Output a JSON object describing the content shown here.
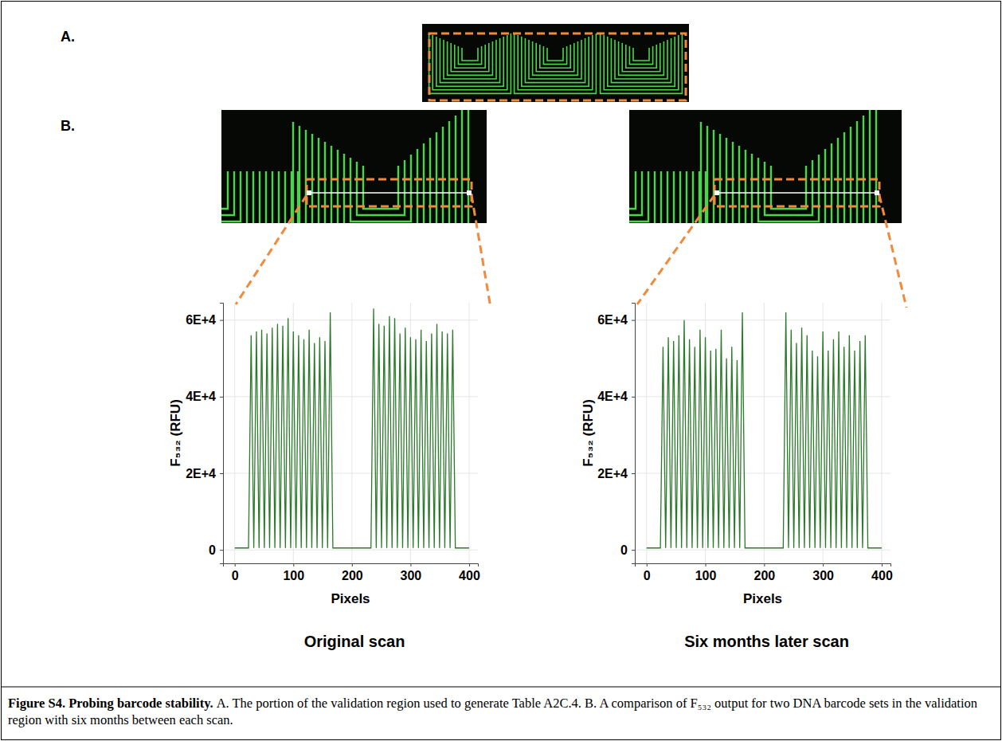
{
  "figure": {
    "panel_labels": [
      "A.",
      "B."
    ],
    "caption": {
      "title": "Figure S4. Probing barcode stability.",
      "text": "A. The portion of the validation region used to generate Table A2C.4. B. A comparison of F₅₃₂ output for two DNA barcode sets in the validation region with six months between each scan."
    }
  },
  "chart_data": [
    {
      "type": "line",
      "title": "Original scan",
      "x_label": "Pixels",
      "y_label": "F₅₃₂ (RFU)",
      "color": "#2b7a2b",
      "grid": true,
      "xlim": [
        -20,
        415
      ],
      "ylim": [
        -3500,
        64500
      ],
      "xticks": [
        0,
        100,
        200,
        300,
        400
      ],
      "yticks": [
        0,
        {
          "value": 20000,
          "label": "2E+4"
        },
        {
          "value": 40000,
          "label": "4E+4"
        },
        {
          "value": 60000,
          "label": "6E+4"
        }
      ],
      "x": [
        0,
        20,
        23.5,
        28,
        32.5,
        37,
        41.5,
        46,
        50.5,
        55,
        59.5,
        64,
        68.5,
        73,
        77.5,
        82,
        86.5,
        91,
        95.5,
        100,
        104.5,
        109,
        113.5,
        118,
        122.5,
        127,
        131.5,
        136,
        140.5,
        145,
        149.5,
        154,
        158.5,
        163,
        167.5,
        228,
        232.5,
        237,
        241.5,
        246,
        250.5,
        255,
        259.5,
        264,
        268.5,
        273,
        277.5,
        282,
        286.5,
        291,
        295.5,
        300,
        304.5,
        309,
        313.5,
        318,
        322.5,
        327,
        331.5,
        336,
        340.5,
        345,
        349.5,
        354,
        358.5,
        363,
        367.5,
        372,
        376.5,
        400
      ],
      "values": [
        500,
        500,
        500,
        56000,
        500,
        57000,
        500,
        57500,
        500,
        56500,
        500,
        58000,
        500,
        59000,
        500,
        58500,
        500,
        60500,
        500,
        57000,
        500,
        56000,
        500,
        55000,
        500,
        57500,
        500,
        54000,
        500,
        55500,
        500,
        54500,
        500,
        62000,
        500,
        500,
        500,
        63000,
        500,
        59000,
        500,
        58500,
        500,
        61000,
        500,
        60500,
        500,
        56500,
        500,
        58000,
        500,
        55500,
        500,
        55000,
        500,
        57500,
        500,
        54500,
        500,
        56500,
        500,
        59000,
        500,
        57000,
        500,
        56500,
        500,
        57500,
        500,
        500
      ]
    },
    {
      "type": "line",
      "title": "Six months later scan",
      "x_label": "Pixels",
      "y_label": "F₅₃₂ (RFU)",
      "color": "#2b7a2b",
      "grid": true,
      "xlim": [
        -20,
        415
      ],
      "ylim": [
        -3500,
        64500
      ],
      "xticks": [
        0,
        100,
        200,
        300,
        400
      ],
      "yticks": [
        0,
        {
          "value": 20000,
          "label": "2E+4"
        },
        {
          "value": 40000,
          "label": "4E+4"
        },
        {
          "value": 60000,
          "label": "6E+4"
        }
      ],
      "x": [
        0,
        20,
        23.5,
        28,
        32.5,
        37,
        41.5,
        46,
        50.5,
        55,
        59.5,
        64,
        68.5,
        73,
        77.5,
        82,
        86.5,
        91,
        95.5,
        100,
        104.5,
        109,
        113.5,
        118,
        122.5,
        127,
        131.5,
        136,
        140.5,
        145,
        149.5,
        154,
        158.5,
        163,
        167.5,
        228,
        232.5,
        237,
        241.5,
        246,
        250.5,
        255,
        259.5,
        264,
        268.5,
        273,
        277.5,
        282,
        286.5,
        291,
        295.5,
        300,
        304.5,
        309,
        313.5,
        318,
        322.5,
        327,
        331.5,
        336,
        340.5,
        345,
        349.5,
        354,
        358.5,
        363,
        367.5,
        372,
        376.5,
        400
      ],
      "values": [
        500,
        500,
        500,
        53000,
        500,
        55500,
        500,
        54500,
        500,
        56000,
        500,
        60000,
        500,
        55000,
        500,
        53000,
        500,
        57500,
        500,
        55500,
        500,
        52000,
        500,
        52500,
        500,
        57500,
        500,
        50000,
        500,
        53000,
        500,
        49500,
        500,
        62000,
        500,
        500,
        500,
        62000,
        500,
        57500,
        500,
        54000,
        500,
        58000,
        500,
        56000,
        500,
        52000,
        500,
        50500,
        500,
        57000,
        500,
        52000,
        500,
        55000,
        500,
        57000,
        500,
        53000,
        500,
        56000,
        500,
        52000,
        500,
        54500,
        500,
        56000,
        500,
        500
      ]
    }
  ]
}
